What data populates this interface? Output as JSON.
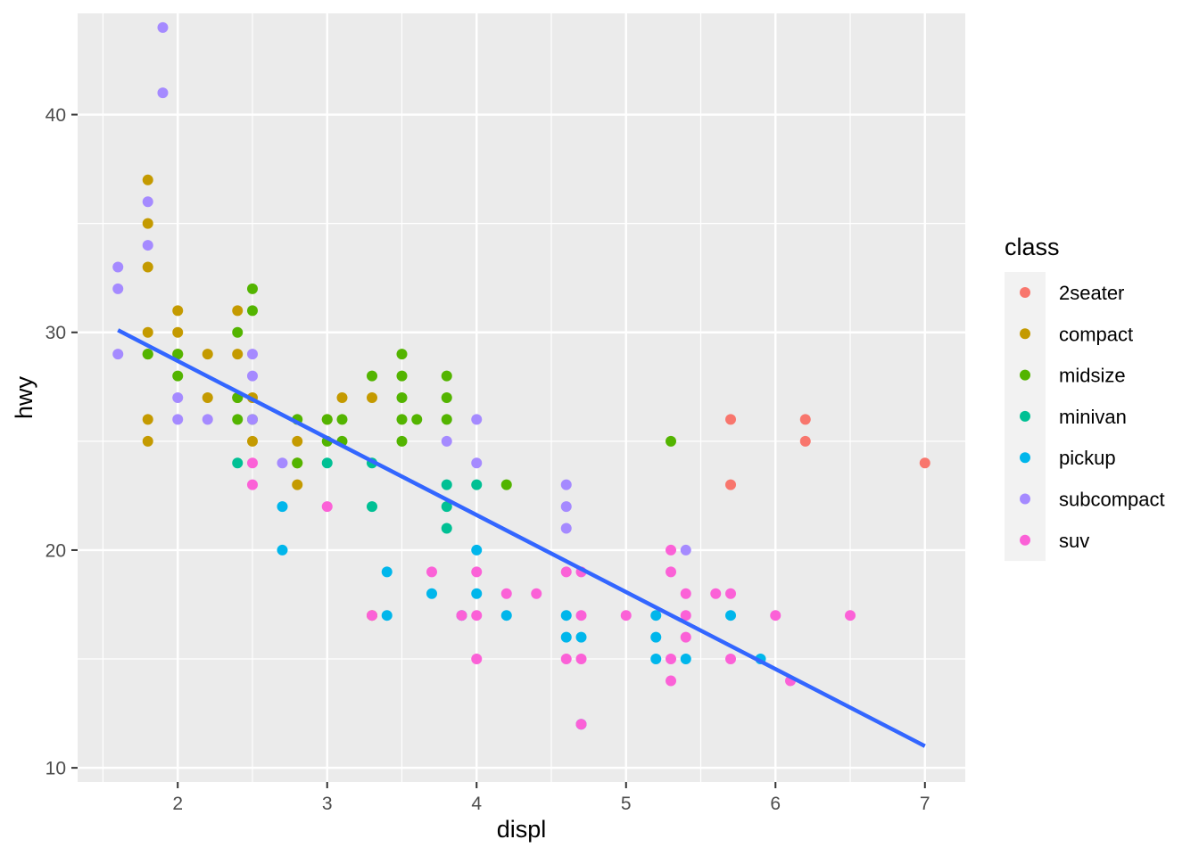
{
  "chart_data": {
    "type": "scatter",
    "xlabel": "displ",
    "ylabel": "hwy",
    "xlim": [
      1.33,
      7.27
    ],
    "ylim": [
      9.35,
      44.65
    ],
    "x_ticks": [
      2,
      3,
      4,
      5,
      6,
      7
    ],
    "y_ticks": [
      10,
      20,
      30,
      40
    ],
    "grid": true,
    "legend": {
      "title": "class",
      "placement": "right",
      "entries": [
        {
          "name": "2seater",
          "color": "#F8766D"
        },
        {
          "name": "compact",
          "color": "#C49A00"
        },
        {
          "name": "midsize",
          "color": "#53B400"
        },
        {
          "name": "minivan",
          "color": "#00C094"
        },
        {
          "name": "pickup",
          "color": "#00B6EB"
        },
        {
          "name": "subcompact",
          "color": "#A58AFF"
        },
        {
          "name": "suv",
          "color": "#FB61D7"
        }
      ]
    },
    "series": [
      {
        "name": "2seater",
        "points": [
          [
            5.7,
            26
          ],
          [
            5.7,
            23
          ],
          [
            6.2,
            26
          ],
          [
            6.2,
            25
          ],
          [
            7.0,
            24
          ]
        ]
      },
      {
        "name": "compact",
        "points": [
          [
            1.8,
            37
          ],
          [
            1.8,
            35
          ],
          [
            1.8,
            33
          ],
          [
            1.8,
            30
          ],
          [
            1.8,
            29
          ],
          [
            1.8,
            26
          ],
          [
            1.8,
            25
          ],
          [
            2.0,
            31
          ],
          [
            2.0,
            30
          ],
          [
            2.0,
            29
          ],
          [
            2.2,
            29
          ],
          [
            2.2,
            27
          ],
          [
            2.4,
            31
          ],
          [
            2.4,
            29
          ],
          [
            2.4,
            27
          ],
          [
            2.5,
            27
          ],
          [
            2.5,
            25
          ],
          [
            2.8,
            25
          ],
          [
            2.8,
            24
          ],
          [
            2.8,
            23
          ],
          [
            3.0,
            26
          ],
          [
            3.1,
            27
          ],
          [
            3.3,
            27
          ],
          [
            3.3,
            17
          ]
        ]
      },
      {
        "name": "midsize",
        "points": [
          [
            1.8,
            29
          ],
          [
            2.0,
            29
          ],
          [
            2.0,
            28
          ],
          [
            2.4,
            30
          ],
          [
            2.4,
            27
          ],
          [
            2.4,
            26
          ],
          [
            2.5,
            32
          ],
          [
            2.5,
            31
          ],
          [
            2.5,
            26
          ],
          [
            2.8,
            26
          ],
          [
            2.8,
            24
          ],
          [
            3.0,
            26
          ],
          [
            3.0,
            25
          ],
          [
            3.1,
            26
          ],
          [
            3.1,
            25
          ],
          [
            3.3,
            28
          ],
          [
            3.5,
            29
          ],
          [
            3.5,
            28
          ],
          [
            3.5,
            27
          ],
          [
            3.5,
            26
          ],
          [
            3.5,
            25
          ],
          [
            3.6,
            26
          ],
          [
            3.8,
            28
          ],
          [
            3.8,
            27
          ],
          [
            3.8,
            26
          ],
          [
            4.2,
            23
          ],
          [
            5.3,
            25
          ]
        ]
      },
      {
        "name": "minivan",
        "points": [
          [
            2.4,
            24
          ],
          [
            3.0,
            24
          ],
          [
            3.3,
            24
          ],
          [
            3.3,
            22
          ],
          [
            3.8,
            23
          ],
          [
            3.8,
            22
          ],
          [
            3.8,
            21
          ],
          [
            4.0,
            23
          ]
        ]
      },
      {
        "name": "pickup",
        "points": [
          [
            2.7,
            22
          ],
          [
            2.7,
            20
          ],
          [
            3.4,
            19
          ],
          [
            3.4,
            17
          ],
          [
            3.7,
            18
          ],
          [
            3.9,
            17
          ],
          [
            4.0,
            20
          ],
          [
            4.0,
            18
          ],
          [
            4.2,
            17
          ],
          [
            4.6,
            17
          ],
          [
            4.6,
            16
          ],
          [
            4.7,
            16
          ],
          [
            4.7,
            12
          ],
          [
            5.2,
            17
          ],
          [
            5.2,
            16
          ],
          [
            5.2,
            15
          ],
          [
            5.4,
            15
          ],
          [
            5.7,
            17
          ],
          [
            5.9,
            15
          ]
        ]
      },
      {
        "name": "subcompact",
        "points": [
          [
            1.6,
            33
          ],
          [
            1.6,
            32
          ],
          [
            1.6,
            29
          ],
          [
            1.8,
            36
          ],
          [
            1.8,
            34
          ],
          [
            1.9,
            44
          ],
          [
            1.9,
            41
          ],
          [
            2.0,
            27
          ],
          [
            2.0,
            26
          ],
          [
            2.2,
            26
          ],
          [
            2.5,
            29
          ],
          [
            2.5,
            28
          ],
          [
            2.5,
            26
          ],
          [
            2.7,
            24
          ],
          [
            3.8,
            25
          ],
          [
            4.0,
            26
          ],
          [
            4.0,
            24
          ],
          [
            4.6,
            23
          ],
          [
            4.6,
            22
          ],
          [
            4.6,
            21
          ],
          [
            5.4,
            20
          ]
        ]
      },
      {
        "name": "suv",
        "points": [
          [
            2.5,
            24
          ],
          [
            2.5,
            23
          ],
          [
            3.0,
            22
          ],
          [
            3.3,
            17
          ],
          [
            3.7,
            19
          ],
          [
            3.9,
            17
          ],
          [
            4.0,
            19
          ],
          [
            4.0,
            17
          ],
          [
            4.0,
            15
          ],
          [
            4.2,
            18
          ],
          [
            4.4,
            18
          ],
          [
            4.6,
            19
          ],
          [
            4.6,
            15
          ],
          [
            4.7,
            19
          ],
          [
            4.7,
            17
          ],
          [
            4.7,
            15
          ],
          [
            4.7,
            12
          ],
          [
            5.0,
            17
          ],
          [
            5.3,
            20
          ],
          [
            5.3,
            19
          ],
          [
            5.3,
            15
          ],
          [
            5.3,
            14
          ],
          [
            5.4,
            18
          ],
          [
            5.4,
            17
          ],
          [
            5.4,
            16
          ],
          [
            5.6,
            18
          ],
          [
            5.7,
            18
          ],
          [
            5.7,
            15
          ],
          [
            6.0,
            17
          ],
          [
            6.1,
            14
          ],
          [
            6.5,
            17
          ]
        ]
      }
    ],
    "trend_line": {
      "type": "linear",
      "color": "#3366FF",
      "points": [
        [
          1.6,
          30.1
        ],
        [
          7.0,
          11.0
        ]
      ]
    }
  }
}
